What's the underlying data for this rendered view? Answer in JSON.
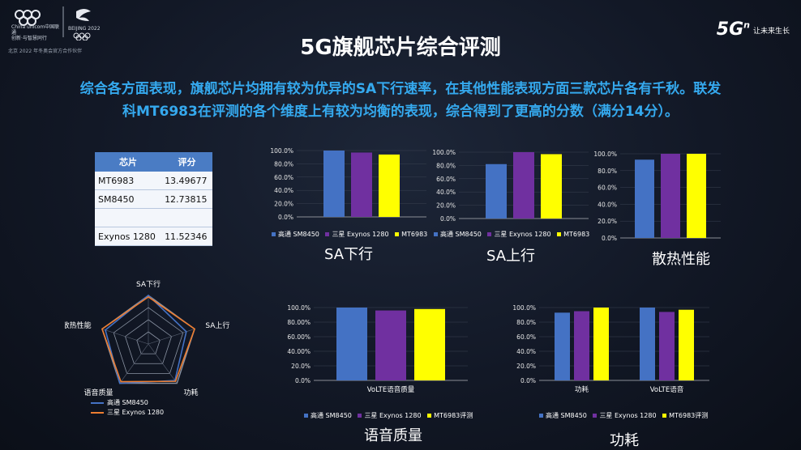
{
  "branding": {
    "unicom_name": "China unicom中国联通",
    "unicom_tagline": "创新·与智慧同行",
    "olympic_label": "BEIJING 2022",
    "footer_note": "北京 2022 年冬奥会官方合作伙伴",
    "brand_5g": "5G",
    "brand_5g_sup": "n",
    "brand_slogan": "让未来生长"
  },
  "title": "5G旗舰芯片综合评测",
  "summary_line1": "综合各方面表现，旗舰芯片均拥有较为优异的SA下行速率，在其他性能表现方面三款芯片各有千秋。联发",
  "summary_line2": "科MT6983在评测的各个维度上有较为均衡的表现，综合得到了更高的分数（满分14分）。",
  "score_table": {
    "headers": [
      "芯片",
      "评分"
    ],
    "rows": [
      {
        "chip": "MT6983",
        "score": "13.49677"
      },
      {
        "chip": "SM8450",
        "score": "12.73815"
      },
      {
        "chip": "Exynos 1280",
        "score": "11.52346"
      }
    ]
  },
  "colors": {
    "sm8450": "#4472c4",
    "exynos": "#7030a0",
    "mt6983": "#ffff00",
    "title_blue": "#35a9ee"
  },
  "chart_data": [
    {
      "type": "bar",
      "title": "SA下行",
      "categories": [
        "高通 SM8450",
        "三星 Exynos 1280",
        "MT6983"
      ],
      "values": [
        100.0,
        97.0,
        94.0
      ],
      "ylim": [
        0,
        100
      ],
      "y_ticks": [
        "0.0%",
        "20.0%",
        "40.0%",
        "60.0%",
        "80.0%",
        "100.0%"
      ]
    },
    {
      "type": "bar",
      "title": "SA上行",
      "categories": [
        "高通 SM8450",
        "三星 Exynos 1280",
        "MT6983"
      ],
      "values": [
        82.0,
        100.0,
        97.0
      ],
      "ylim": [
        0,
        100
      ],
      "y_ticks": [
        "0.0%",
        "20.0%",
        "40.0%",
        "60.0%",
        "80.0%",
        "100.0%"
      ]
    },
    {
      "type": "bar",
      "title": "散热性能",
      "categories": [
        "高通 SM8450",
        "三星 Exynos 1280",
        "MT6983"
      ],
      "values": [
        93.0,
        100.0,
        100.0
      ],
      "ylim": [
        0,
        100
      ],
      "y_ticks": [
        "0.0%",
        "20.0%",
        "40.0%",
        "60.0%",
        "80.0%",
        "100.0%"
      ]
    },
    {
      "type": "bar",
      "title": "语音质量",
      "categories": [
        "VoLTE语音质量"
      ],
      "series": [
        {
          "name": "高通 SM8450",
          "values": [
            100.0
          ]
        },
        {
          "name": "三星 Exynos 1280",
          "values": [
            96.0
          ]
        },
        {
          "name": "MT6983评测",
          "values": [
            98.0
          ]
        }
      ],
      "ylim": [
        0,
        100
      ],
      "y_ticks": [
        "0.0%",
        "20.0%",
        "40.00%",
        "60.00%",
        "80.00%",
        "100.0%"
      ]
    },
    {
      "type": "bar",
      "title": "功耗",
      "categories": [
        "功耗",
        "VoLTE语音"
      ],
      "series": [
        {
          "name": "高通 SM8450",
          "values": [
            93.0,
            100.0
          ]
        },
        {
          "name": "三星 Exynos 1280",
          "values": [
            95.0,
            94.0
          ]
        },
        {
          "name": "MT6983评测",
          "values": [
            100.0,
            97.0
          ]
        }
      ],
      "ylim": [
        0,
        100
      ],
      "y_ticks": [
        "0.0%",
        "20.0%",
        "40.0%",
        "60.0%",
        "80.0%",
        "100.0%"
      ]
    },
    {
      "type": "radar",
      "axes": [
        "SA下行",
        "SA上行",
        "功耗",
        "语音质量",
        "散热性能"
      ],
      "series": [
        {
          "name": "高通 SM8450",
          "values": [
            100,
            82,
            93,
            100,
            93
          ]
        },
        {
          "name": "三星 Exynos 1280",
          "values": [
            97,
            100,
            95,
            96,
            100
          ]
        }
      ],
      "rlim": [
        0,
        100
      ]
    }
  ]
}
